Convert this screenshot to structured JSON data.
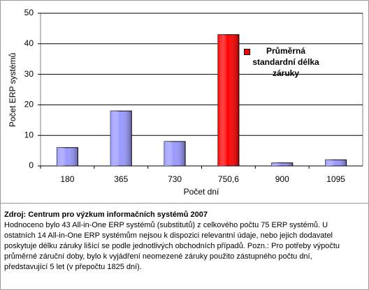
{
  "chart_data": {
    "type": "bar",
    "y_label": "Počet ERP systémů",
    "x_label": "Počet dní",
    "categories": [
      "180",
      "365",
      "730",
      "750,6",
      "900",
      "1095"
    ],
    "values": [
      6,
      18,
      8,
      43,
      1,
      2
    ],
    "colors": [
      "#9999ff",
      "#9999ff",
      "#9999ff",
      "#ff0000",
      "#9999ff",
      "#9999ff"
    ],
    "legend": {
      "label": "Průměrná standardní délka záruky",
      "color": "#ff0000"
    },
    "ylim": [
      0,
      50
    ],
    "yticks": [
      0,
      10,
      20,
      30,
      40,
      50
    ],
    "grid": true
  },
  "note": {
    "source": "Zdroj: Centrum pro výzkum informačních systémů 2007",
    "text": "Hodnoceno bylo 43 All-in-One ERP systémů  (substitutů) z celkového počtu 75 ERP systémů. U ostatních 14 All-in-One ERP systémům nejsou k dispozici relevantní údaje, nebo jejich dodavatel poskytuje délku záruky lišící se podle jednotlivých obchodních případů. Pozn.: Pro potřeby výpočtu průměrné záruční doby, bylo k vyjádření neomezené záruky použito zástupného počtu dní, představující 5 let (v přepočtu 1825 dní)."
  }
}
